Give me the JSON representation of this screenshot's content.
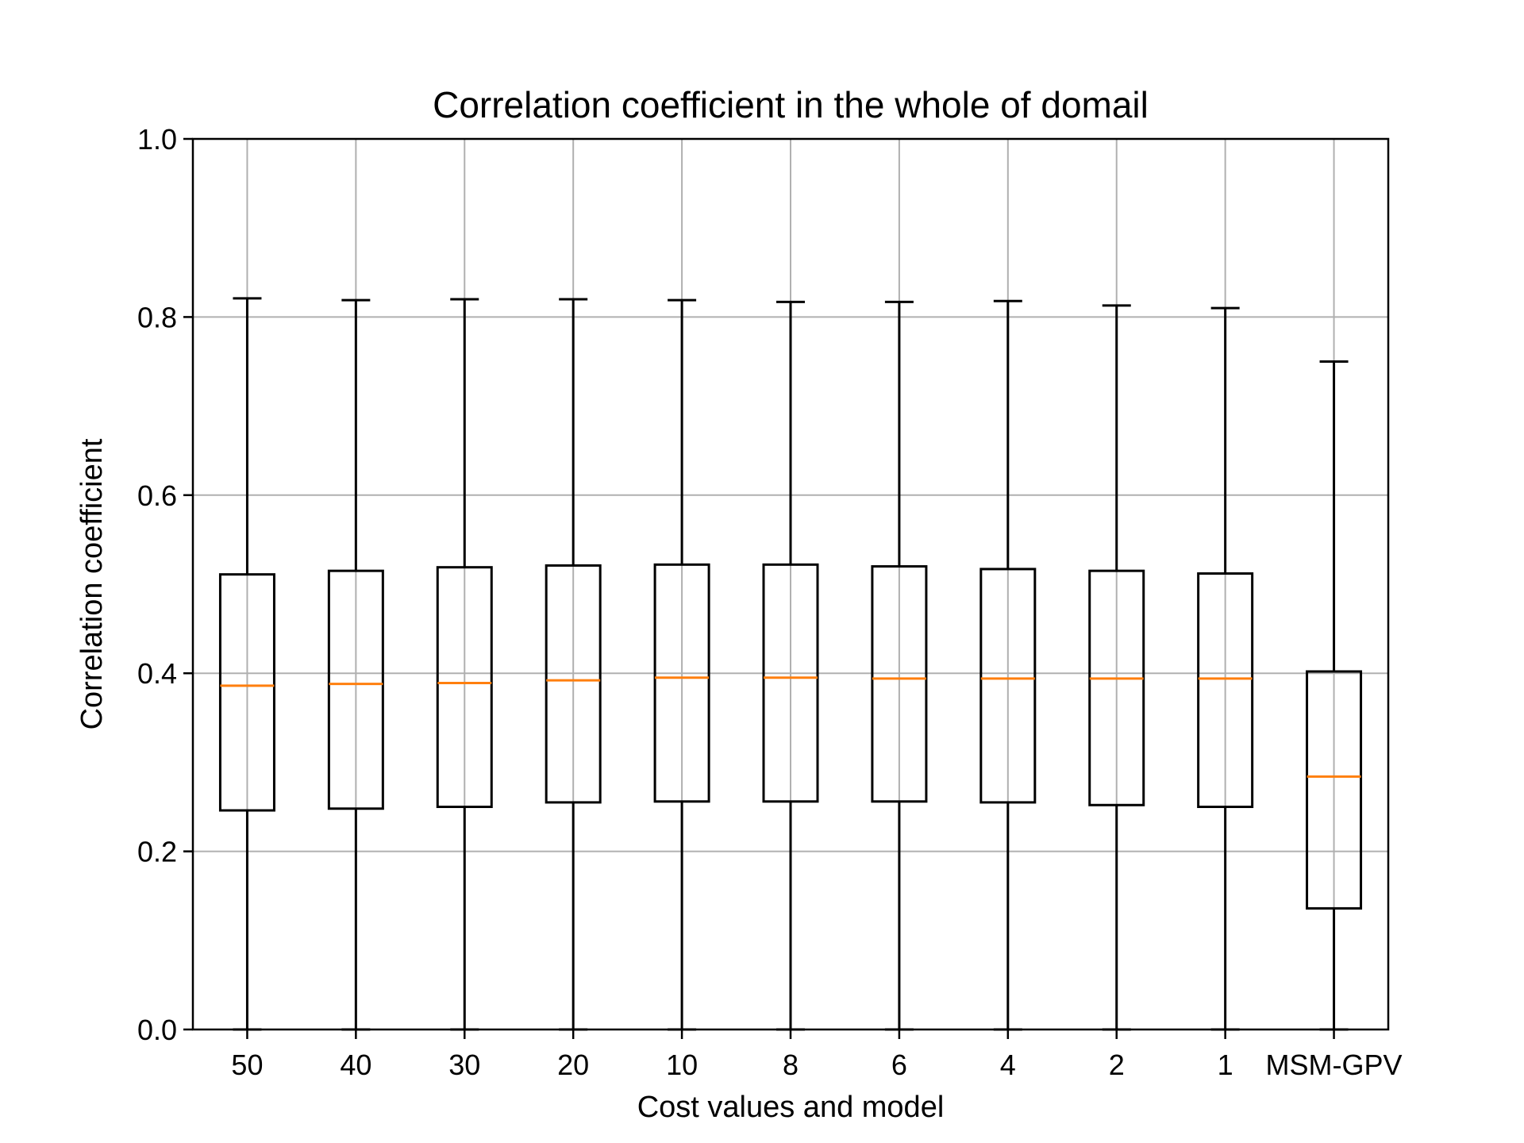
{
  "chart_data": {
    "type": "boxplot",
    "title": "Correlation coefficient in the whole of domail",
    "xlabel": "Cost values and model",
    "ylabel": "Correlation coefficient",
    "ylim": [
      0.0,
      1.0
    ],
    "yticks": [
      "0.0",
      "0.2",
      "0.4",
      "0.6",
      "0.8",
      "1.0"
    ],
    "grid": true,
    "categories": [
      "50",
      "40",
      "30",
      "20",
      "10",
      "8",
      "6",
      "4",
      "2",
      "1",
      "MSM-GPV"
    ],
    "boxes": [
      {
        "label": "50",
        "whisker_low": 0.0,
        "q1": 0.246,
        "median": 0.386,
        "q3": 0.511,
        "whisker_high": 0.821
      },
      {
        "label": "40",
        "whisker_low": 0.0,
        "q1": 0.248,
        "median": 0.388,
        "q3": 0.515,
        "whisker_high": 0.819
      },
      {
        "label": "30",
        "whisker_low": 0.0,
        "q1": 0.25,
        "median": 0.389,
        "q3": 0.519,
        "whisker_high": 0.82
      },
      {
        "label": "20",
        "whisker_low": 0.0,
        "q1": 0.255,
        "median": 0.392,
        "q3": 0.521,
        "whisker_high": 0.82
      },
      {
        "label": "10",
        "whisker_low": 0.0,
        "q1": 0.256,
        "median": 0.395,
        "q3": 0.522,
        "whisker_high": 0.819
      },
      {
        "label": "8",
        "whisker_low": 0.0,
        "q1": 0.256,
        "median": 0.395,
        "q3": 0.522,
        "whisker_high": 0.817
      },
      {
        "label": "6",
        "whisker_low": 0.0,
        "q1": 0.256,
        "median": 0.394,
        "q3": 0.52,
        "whisker_high": 0.817
      },
      {
        "label": "4",
        "whisker_low": 0.0,
        "q1": 0.255,
        "median": 0.394,
        "q3": 0.517,
        "whisker_high": 0.818
      },
      {
        "label": "2",
        "whisker_low": 0.0,
        "q1": 0.252,
        "median": 0.394,
        "q3": 0.515,
        "whisker_high": 0.813
      },
      {
        "label": "1",
        "whisker_low": 0.0,
        "q1": 0.25,
        "median": 0.394,
        "q3": 0.512,
        "whisker_high": 0.81
      },
      {
        "label": "MSM-GPV",
        "whisker_low": 0.0,
        "q1": 0.136,
        "median": 0.284,
        "q3": 0.402,
        "whisker_high": 0.75
      }
    ],
    "colors": {
      "box": "#000000",
      "median": "#ff7f0e",
      "grid": "#b0b0b0",
      "axes": "#000000"
    }
  }
}
